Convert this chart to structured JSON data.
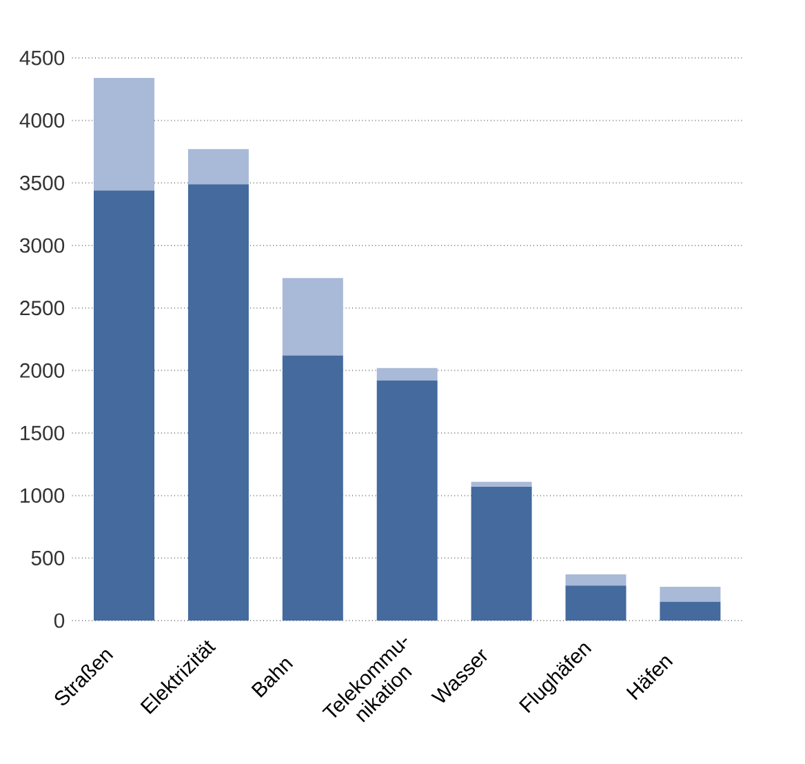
{
  "chart_data": {
    "type": "bar",
    "stacked": true,
    "categories": [
      "Straßen",
      "Elektrizität",
      "Bahn",
      "Telekommu-nikation",
      "Wasser",
      "Flughäfen",
      "Häfen"
    ],
    "series": [
      {
        "color": "#446a9e",
        "values": [
          3440,
          3490,
          2120,
          1920,
          1070,
          280,
          150
        ]
      },
      {
        "color": "#a9b9d8",
        "values": [
          900,
          280,
          620,
          100,
          40,
          90,
          120
        ]
      }
    ],
    "ylim": [
      0,
      4500
    ],
    "yticks": [
      0,
      500,
      1000,
      1500,
      2000,
      2500,
      3000,
      3500,
      4000,
      4500
    ],
    "grid": "y"
  }
}
